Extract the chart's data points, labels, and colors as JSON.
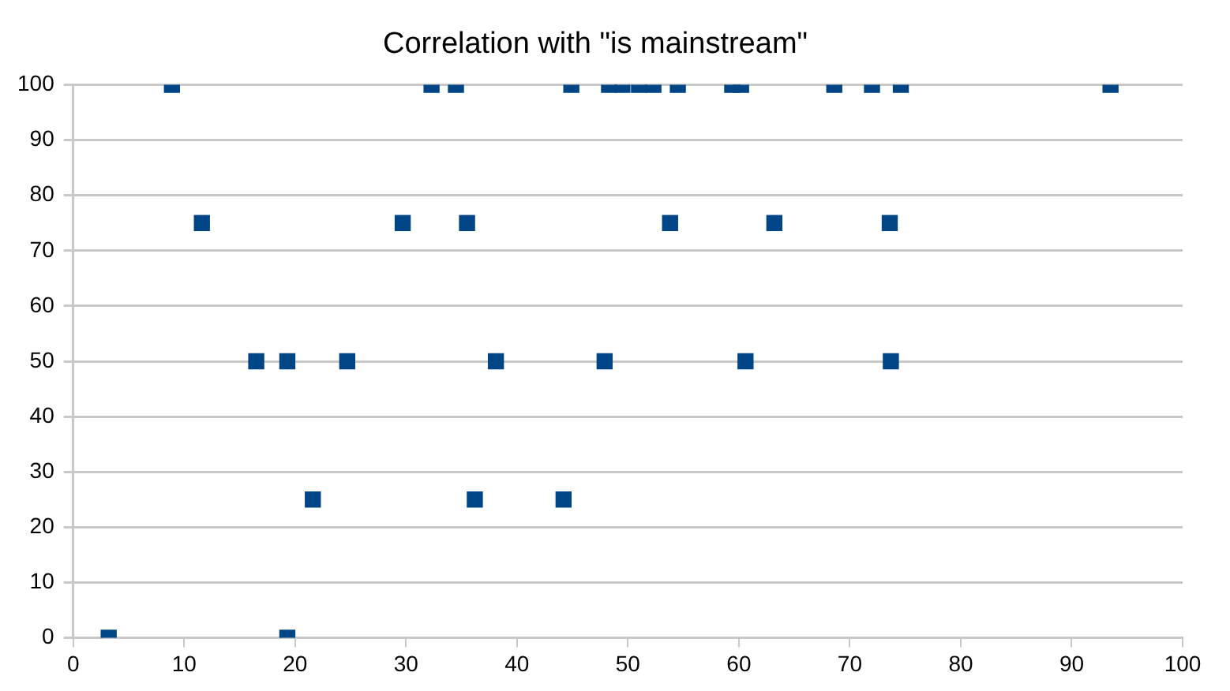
{
  "chart_data": {
    "type": "scatter",
    "title": "Correlation with \"is mainstream\"",
    "x": [
      8.9,
      32.3,
      34.5,
      44.9,
      48.3,
      49.5,
      51,
      52.3,
      54.5,
      59.4,
      60.2,
      68.6,
      72,
      74.6,
      93.5,
      11.6,
      29.7,
      35.5,
      53.8,
      63.2,
      73.6,
      16.5,
      19.3,
      24.7,
      38.1,
      47.9,
      60.6,
      73.7,
      21.6,
      36.2,
      44.2,
      3.2,
      19.3
    ],
    "values": [
      100,
      100,
      100,
      100,
      100,
      100,
      100,
      100,
      100,
      100,
      100,
      100,
      100,
      100,
      100,
      75,
      75,
      75,
      75,
      75,
      75,
      50,
      50,
      50,
      50,
      50,
      50,
      50,
      25,
      25,
      25,
      0,
      0
    ],
    "color": "#004586",
    "marker": "square",
    "xlim": [
      0,
      100
    ],
    "xticks": [
      0,
      10,
      20,
      30,
      40,
      50,
      60,
      70,
      80,
      90,
      100
    ],
    "ylim": [
      0,
      100
    ],
    "yticks": [
      0,
      10,
      20,
      30,
      40,
      50,
      60,
      70,
      80,
      90,
      100
    ],
    "grid": "y",
    "legend": false
  }
}
